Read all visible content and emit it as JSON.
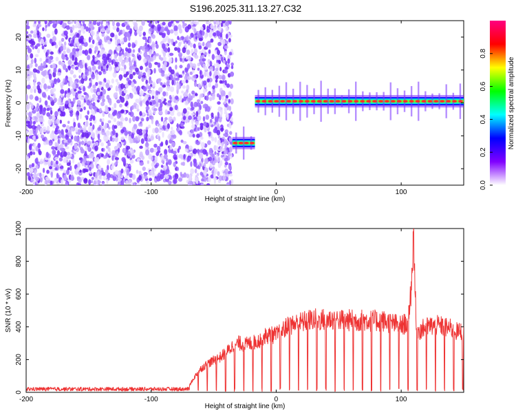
{
  "title": "S196.2025.311.13.27.C32",
  "charts": [
    {
      "id": "spectrogram",
      "type": "heatmap",
      "xlabel": "Height of straight line (km)",
      "ylabel": "Frequency (Hz)",
      "xlim": [
        -200,
        150
      ],
      "ylim": [
        -25,
        25
      ],
      "xticks": [
        -200,
        -100,
        0,
        100
      ],
      "yticks": [
        -20,
        -10,
        0,
        10,
        20
      ],
      "segments": [
        {
          "kind": "noise",
          "x_range": [
            -200,
            -35
          ],
          "freq_range": [
            -25,
            25
          ]
        },
        {
          "kind": "tone",
          "x_range": [
            -35,
            -17
          ],
          "freq": -12.2
        },
        {
          "kind": "tone",
          "x_range": [
            -17,
            150
          ],
          "freq": 0.5
        }
      ],
      "colorbar": {
        "label": "Normalized spectral amplitude",
        "range": [
          0.0,
          1.0
        ],
        "ticks": [
          "0.0",
          "0.2",
          "0.4",
          "0.6",
          "0.8"
        ],
        "colors": [
          "#ffffff",
          "#8000ff",
          "#0000ff",
          "#00ffff",
          "#00ff00",
          "#ffff00",
          "#ff0000",
          "#ff0080"
        ]
      }
    },
    {
      "id": "snr",
      "type": "line",
      "xlabel": "Height of straight line (km)",
      "ylabel": "SNR (10 * v/v)",
      "xlim": [
        -200,
        150
      ],
      "ylim": [
        0,
        1000
      ],
      "xticks": [
        -200,
        -100,
        0,
        100
      ],
      "yticks": [
        0,
        200,
        400,
        600,
        800,
        1000
      ],
      "color": "#ee3333",
      "series": [
        {
          "x": [
            -200,
            -150,
            -100,
            -80,
            -70,
            -65,
            -60,
            -55,
            -50,
            -45,
            -40,
            -35,
            -30,
            -25,
            -20,
            -15,
            -10,
            -5,
            0,
            5,
            10,
            15,
            20,
            25,
            30,
            35,
            40,
            45,
            50,
            55,
            60,
            65,
            70,
            75,
            80,
            85,
            90,
            95,
            100,
            105,
            108,
            110,
            112,
            115,
            120,
            125,
            130,
            135,
            140,
            145,
            150
          ],
          "y": [
            20,
            20,
            25,
            25,
            35,
            100,
            150,
            180,
            200,
            220,
            250,
            290,
            310,
            300,
            310,
            320,
            350,
            360,
            360,
            390,
            420,
            430,
            440,
            450,
            460,
            455,
            460,
            460,
            460,
            450,
            455,
            450,
            455,
            450,
            450,
            450,
            440,
            430,
            420,
            440,
            650,
            1000,
            400,
            390,
            410,
            420,
            420,
            410,
            400,
            380,
            390
          ]
        }
      ]
    }
  ]
}
